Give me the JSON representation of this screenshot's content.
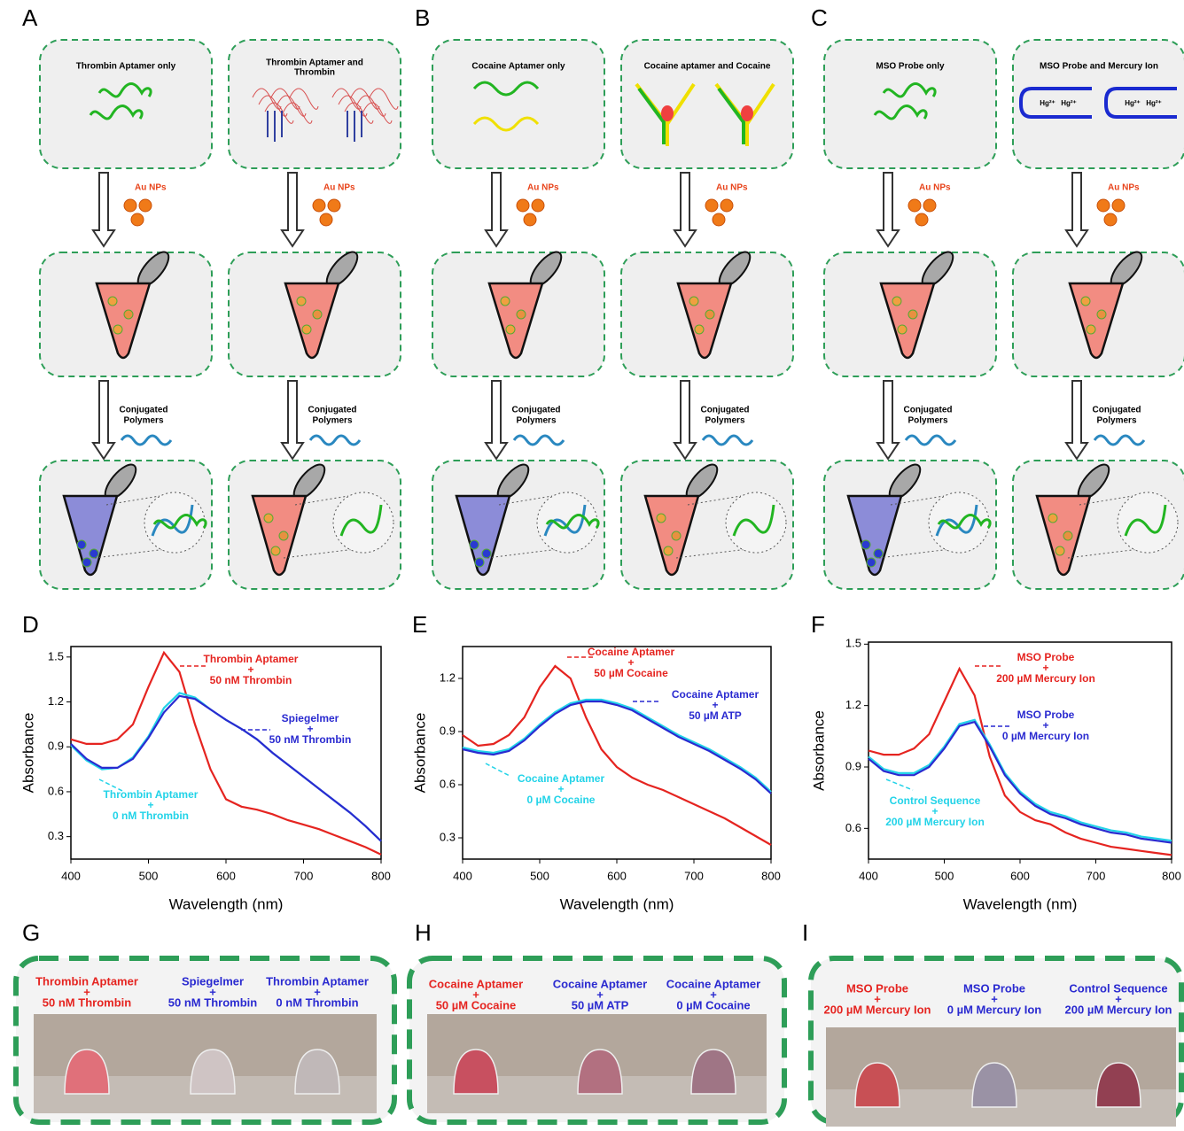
{
  "panel_labels": [
    "A",
    "B",
    "C",
    "D",
    "E",
    "F",
    "G",
    "H",
    "I"
  ],
  "schemes": [
    {
      "top_titles": [
        [
          "Thrombin Aptamer only"
        ],
        [
          "Thrombin Aptamer and",
          "Thrombin"
        ]
      ],
      "nps_label": "Au NPs",
      "polymer_label": [
        "Conjugated",
        "Polymers"
      ]
    },
    {
      "top_titles": [
        [
          "Cocaine Aptamer only"
        ],
        [
          "Cocaine aptamer and Cocaine"
        ]
      ],
      "nps_label": "Au NPs",
      "polymer_label": [
        "Conjugated",
        "Polymers"
      ]
    },
    {
      "top_titles": [
        [
          "MSO Probe only"
        ],
        [
          "MSO Probe and Mercury Ion"
        ]
      ],
      "nps_label": "Au NPs",
      "polymer_label": [
        "Conjugated",
        "Polymers"
      ],
      "ion_label": "Hg²⁺"
    }
  ],
  "chart_data": [
    {
      "type": "line",
      "y_label": "Absorbance",
      "x_label": "Wavelength (nm)",
      "x": [
        400,
        420,
        440,
        460,
        480,
        500,
        520,
        540,
        560,
        580,
        600,
        620,
        640,
        660,
        680,
        700,
        720,
        740,
        760,
        780,
        800
      ],
      "xlim": [
        400,
        800
      ],
      "xticks": [
        400,
        500,
        600,
        700,
        800
      ],
      "ylim": [
        0.15,
        1.57
      ],
      "yticks": [
        0.3,
        0.6,
        0.9,
        1.2,
        1.5
      ],
      "series": [
        {
          "color": "#e52420",
          "values": [
            0.95,
            0.92,
            0.92,
            0.95,
            1.05,
            1.3,
            1.53,
            1.4,
            1.05,
            0.75,
            0.55,
            0.5,
            0.48,
            0.45,
            0.41,
            0.38,
            0.35,
            0.31,
            0.27,
            0.23,
            0.18
          ]
        },
        {
          "color": "#22d3e8",
          "values": [
            0.91,
            0.81,
            0.75,
            0.76,
            0.83,
            0.97,
            1.16,
            1.26,
            1.23,
            1.15,
            1.08,
            1.02,
            0.95,
            0.86,
            0.78,
            0.7,
            0.62,
            0.54,
            0.46,
            0.37,
            0.27
          ]
        },
        {
          "color": "#2a2ad0",
          "values": [
            0.92,
            0.82,
            0.76,
            0.76,
            0.82,
            0.96,
            1.13,
            1.24,
            1.22,
            1.15,
            1.08,
            1.02,
            0.95,
            0.86,
            0.78,
            0.7,
            0.62,
            0.54,
            0.46,
            0.37,
            0.27
          ]
        }
      ],
      "annotations": [
        {
          "color": "#e52420",
          "lines": [
            "Thrombin Aptamer",
            "+",
            "50 nM Thrombin"
          ]
        },
        {
          "color": "#2a2ad0",
          "lines": [
            "Spiegelmer",
            "+",
            "50 nM Thrombin"
          ]
        },
        {
          "color": "#22d3e8",
          "lines": [
            "Thrombin Aptamer",
            "+",
            "0 nM Thrombin"
          ]
        }
      ]
    },
    {
      "type": "line",
      "y_label": "Absorbance",
      "x_label": "Wavelength (nm)",
      "x": [
        400,
        420,
        440,
        460,
        480,
        500,
        520,
        540,
        560,
        580,
        600,
        620,
        640,
        660,
        680,
        700,
        720,
        740,
        760,
        780,
        800
      ],
      "xlim": [
        400,
        800
      ],
      "xticks": [
        400,
        500,
        600,
        700,
        800
      ],
      "ylim": [
        0.18,
        1.38
      ],
      "yticks": [
        0.3,
        0.6,
        0.9,
        1.2
      ],
      "series": [
        {
          "color": "#e52420",
          "values": [
            0.88,
            0.82,
            0.83,
            0.88,
            0.98,
            1.15,
            1.27,
            1.2,
            0.98,
            0.8,
            0.7,
            0.64,
            0.6,
            0.57,
            0.53,
            0.49,
            0.45,
            0.41,
            0.36,
            0.31,
            0.26
          ]
        },
        {
          "color": "#22d3e8",
          "values": [
            0.81,
            0.79,
            0.78,
            0.8,
            0.86,
            0.94,
            1.01,
            1.06,
            1.08,
            1.08,
            1.06,
            1.03,
            0.98,
            0.93,
            0.88,
            0.84,
            0.8,
            0.75,
            0.7,
            0.64,
            0.56
          ]
        },
        {
          "color": "#2a2ad0",
          "values": [
            0.8,
            0.78,
            0.77,
            0.79,
            0.85,
            0.93,
            1.0,
            1.05,
            1.07,
            1.07,
            1.05,
            1.02,
            0.97,
            0.92,
            0.87,
            0.83,
            0.79,
            0.74,
            0.69,
            0.63,
            0.55
          ]
        }
      ],
      "annotations": [
        {
          "color": "#e52420",
          "lines": [
            "Cocaine Aptamer",
            "+",
            "50 µM Cocaine"
          ]
        },
        {
          "color": "#2a2ad0",
          "lines": [
            "Cocaine Aptamer",
            "+",
            "50 µM ATP"
          ]
        },
        {
          "color": "#22d3e8",
          "lines": [
            "Cocaine Aptamer",
            "+",
            "0 µM Cocaine"
          ]
        }
      ]
    },
    {
      "type": "line",
      "y_label": "Absorbance",
      "x_label": "Wavelength (nm)",
      "x": [
        400,
        420,
        440,
        460,
        480,
        500,
        520,
        540,
        560,
        580,
        600,
        620,
        640,
        660,
        680,
        700,
        720,
        740,
        760,
        780,
        800
      ],
      "xlim": [
        400,
        800
      ],
      "xticks": [
        400,
        500,
        600,
        700,
        800
      ],
      "ylim": [
        0.45,
        1.51
      ],
      "yticks": [
        0.6,
        0.9,
        1.2,
        1.5
      ],
      "series": [
        {
          "color": "#e52420",
          "values": [
            0.98,
            0.96,
            0.96,
            0.99,
            1.06,
            1.22,
            1.38,
            1.25,
            0.95,
            0.76,
            0.68,
            0.64,
            0.62,
            0.58,
            0.55,
            0.53,
            0.51,
            0.5,
            0.49,
            0.48,
            0.47
          ]
        },
        {
          "color": "#22d3e8",
          "values": [
            0.95,
            0.89,
            0.87,
            0.87,
            0.91,
            1.0,
            1.11,
            1.13,
            1.01,
            0.87,
            0.78,
            0.72,
            0.68,
            0.66,
            0.63,
            0.61,
            0.59,
            0.58,
            0.56,
            0.55,
            0.54
          ]
        },
        {
          "color": "#2a2ad0",
          "values": [
            0.94,
            0.88,
            0.86,
            0.86,
            0.9,
            0.99,
            1.1,
            1.12,
            1.0,
            0.86,
            0.77,
            0.71,
            0.67,
            0.65,
            0.62,
            0.6,
            0.58,
            0.57,
            0.55,
            0.54,
            0.53
          ]
        }
      ],
      "annotations": [
        {
          "color": "#e52420",
          "lines": [
            "MSO Probe",
            "+",
            "200 µM Mercury Ion"
          ]
        },
        {
          "color": "#2a2ad0",
          "lines": [
            "MSO Probe",
            "+",
            "0 µM Mercury Ion"
          ]
        },
        {
          "color": "#22d3e8",
          "lines": [
            "Control Sequence",
            "+",
            "200 µM Mercury Ion"
          ]
        }
      ]
    }
  ],
  "photos": [
    {
      "labels": [
        {
          "color": "#e52420",
          "lines": [
            "Thrombin Aptamer",
            "+",
            "50 nM Thrombin"
          ]
        },
        {
          "color": "#2a2ad0",
          "lines": [
            "Spiegelmer",
            "+",
            "50 nM Thrombin"
          ]
        },
        {
          "color": "#2a2ad0",
          "lines": [
            "Thrombin Aptamer",
            "+",
            "0 nM Thrombin"
          ]
        }
      ]
    },
    {
      "labels": [
        {
          "color": "#e52420",
          "lines": [
            "Cocaine Aptamer",
            "+",
            "50 µM Cocaine"
          ]
        },
        {
          "color": "#2a2ad0",
          "lines": [
            "Cocaine Aptamer",
            "+",
            "50 µM ATP"
          ]
        },
        {
          "color": "#2a2ad0",
          "lines": [
            "Cocaine Aptamer",
            "+",
            "0 µM Cocaine"
          ]
        }
      ]
    },
    {
      "labels": [
        {
          "color": "#e52420",
          "lines": [
            "MSO Probe",
            "+",
            "200 µM Mercury Ion"
          ]
        },
        {
          "color": "#2a2ad0",
          "lines": [
            "MSO Probe",
            "+",
            "0 µM Mercury Ion"
          ]
        },
        {
          "color": "#2a2ad0",
          "lines": [
            "Control Sequence",
            "+",
            "200 µM Mercury Ion"
          ]
        }
      ]
    }
  ]
}
